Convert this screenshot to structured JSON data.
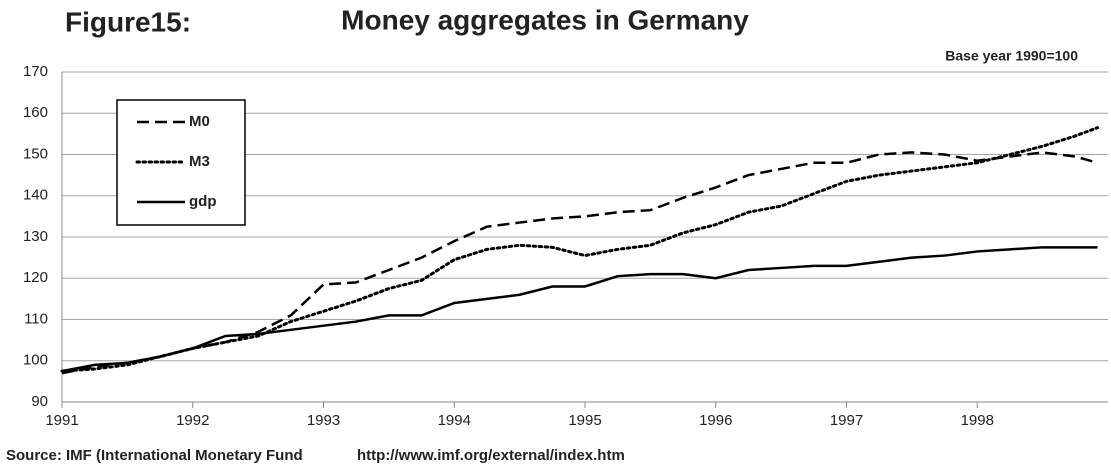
{
  "chart_data": {
    "type": "line",
    "figure_label": "Figure15:",
    "title": "Money aggregates in Germany",
    "subtitle": "Base year 1990=100",
    "source": "Source: IMF (International Monetary Fund",
    "source_url": "http://www.imf.org/external/index.htm",
    "x": [
      1991,
      1991.25,
      1991.5,
      1991.75,
      1992,
      1992.25,
      1992.5,
      1992.75,
      1993,
      1993.25,
      1993.5,
      1993.75,
      1994,
      1994.25,
      1994.5,
      1994.75,
      1995,
      1995.25,
      1995.5,
      1995.75,
      1996,
      1996.25,
      1996.5,
      1996.75,
      1997,
      1997.25,
      1997.5,
      1997.75,
      1998,
      1998.25,
      1998.5,
      1998.75,
      1998.92
    ],
    "series": [
      {
        "name": "M0",
        "color": "#000000",
        "style": "dashed",
        "values": [
          97,
          98.5,
          99.5,
          101,
          103,
          104.5,
          107,
          111,
          118.5,
          119,
          122,
          125,
          129,
          132.5,
          133.5,
          134.5,
          135,
          136,
          136.5,
          139.5,
          142,
          145,
          146.5,
          148,
          148,
          150,
          150.5,
          150,
          148.5,
          149.5,
          150.5,
          149.5,
          148
        ]
      },
      {
        "name": "M3",
        "color": "#000000",
        "style": "dotted",
        "values": [
          97.5,
          98,
          99,
          101,
          103,
          104.5,
          106,
          109.5,
          112,
          114.5,
          117.5,
          119.5,
          124.5,
          127,
          128,
          127.5,
          125.5,
          127,
          128,
          131,
          133,
          136,
          137.5,
          140.5,
          143.5,
          145,
          146,
          147,
          148,
          150,
          152,
          154.5,
          156.5
        ]
      },
      {
        "name": "gdp",
        "color": "#000000",
        "style": "solid",
        "values": [
          97.5,
          99,
          99.5,
          101,
          103,
          106,
          106.5,
          107.5,
          108.5,
          109.5,
          111,
          111,
          114,
          115,
          116,
          118,
          118,
          120.5,
          121,
          121,
          120,
          122,
          122.5,
          123,
          123,
          124,
          125,
          125.5,
          126.5,
          127,
          127.5,
          127.5,
          127.5
        ]
      }
    ],
    "xlim": [
      1991,
      1999
    ],
    "xticks": [
      1991,
      1992,
      1993,
      1994,
      1995,
      1996,
      1997,
      1998
    ],
    "ylim": [
      90,
      170
    ],
    "yticks": [
      90,
      100,
      110,
      120,
      130,
      140,
      150,
      160,
      170
    ],
    "grid": true,
    "legend": "upper-left"
  }
}
